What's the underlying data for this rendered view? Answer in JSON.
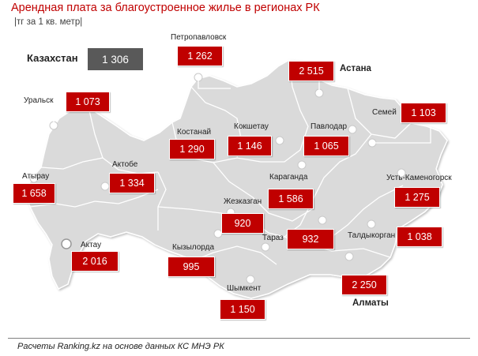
{
  "title": "Арендная плата за благоустроенное жилье в регионах РК",
  "subtitle": "|тг за 1 кв. метр|",
  "country": {
    "label": "Казахстан",
    "value": "1 306"
  },
  "regions": [
    {
      "id": "petropavlovsk",
      "city": "Петропавловск",
      "value": "1 262"
    },
    {
      "id": "astana",
      "city": "Астана",
      "value": "2 515"
    },
    {
      "id": "uralsk",
      "city": "Уральск",
      "value": "1 073"
    },
    {
      "id": "semey",
      "city": "Семей",
      "value": "1 103"
    },
    {
      "id": "kostanay",
      "city": "Костанай",
      "value": "1 290"
    },
    {
      "id": "kokshetau",
      "city": "Кокшетау",
      "value": "1 146"
    },
    {
      "id": "pavlodar",
      "city": "Павлодар",
      "value": "1 065"
    },
    {
      "id": "atyrau",
      "city": "Атырау",
      "value": "1 658"
    },
    {
      "id": "aktobe",
      "city": "Актобе",
      "value": "1 334"
    },
    {
      "id": "karaganda",
      "city": "Караганда",
      "value": "1 586"
    },
    {
      "id": "ust-kamenogorsk",
      "city": "Усть-Каменогорск",
      "value": "1 275"
    },
    {
      "id": "zhezkazgan",
      "city": "Жезказган",
      "value": "920"
    },
    {
      "id": "aktau",
      "city": "Актау",
      "value": "2 016"
    },
    {
      "id": "taraz",
      "city": "Тараз",
      "value": "932"
    },
    {
      "id": "taldykorgan",
      "city": "Талдыкорган",
      "value": "1 038"
    },
    {
      "id": "kyzylorda",
      "city": "Кызылорда",
      "value": "995"
    },
    {
      "id": "almaty",
      "city": "Алматы",
      "value": "2 250"
    },
    {
      "id": "shymkent",
      "city": "Шымкент",
      "value": "1 150"
    }
  ],
  "footer": "Расчеты Ranking.kz на основе данных КС МНЭ РК",
  "colors": {
    "accent": "#c00000",
    "country_box": "#595959",
    "map_fill": "#dadada",
    "title": "#c00000"
  }
}
